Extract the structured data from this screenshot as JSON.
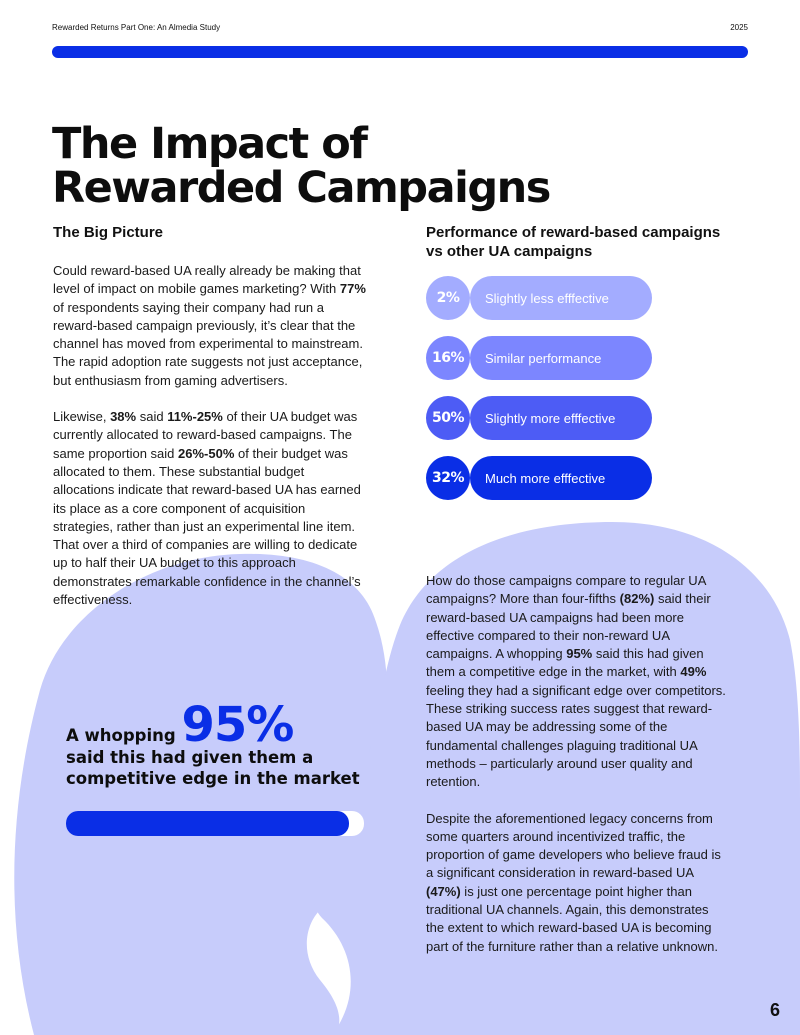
{
  "header": {
    "doc_title": "Rewarded Returns Part One: An Almedia Study",
    "year": "2025"
  },
  "title_line1": "The Impact of",
  "title_line2": "Rewarded Campaigns",
  "left": {
    "subheading": "The Big Picture",
    "para1": {
      "a": "Could reward-based UA really already be making that level of impact on mobile games marketing? With ",
      "b": "77%",
      "c": " of respondents saying their company had run a reward-based campaign previously, it’s clear that the channel has moved from experimental to mainstream. The rapid adoption rate suggests not just acceptance, but enthusiasm from gaming advertisers."
    },
    "para2": {
      "a": "Likewise, ",
      "b": "38%",
      "c": " said ",
      "d": "11%-25%",
      "e": " of their UA budget was currently allocated to reward-based campaigns. The same proportion said  ",
      "f": "26%-50%",
      "g": " of their budget was allocated to them. These substantial budget allocations indicate that reward-based UA has earned its place as a core component of acquisition strategies, rather than just an experimental line item. That over a third of companies are willing to dedicate up to half their UA budget to this approach demonstrates remarkable confidence in the channel’s effectiveness."
    }
  },
  "chart_data": {
    "type": "bar",
    "title": "Performance of reward-based campaigns vs other UA campaigns",
    "categories": [
      "Slightly less efffective",
      "Similar performance",
      "Slightly more efffective",
      "Much more efffective"
    ],
    "values": [
      2,
      16,
      50,
      32
    ],
    "value_labels": [
      "2%",
      "16%",
      "50%",
      "32%"
    ],
    "colors": [
      "#a3acff",
      "#7c86ff",
      "#4d5cf5",
      "#0a2ee6"
    ]
  },
  "callout": {
    "prefix": "A whopping",
    "big_value": "95%",
    "line2": "said this had given them a",
    "line3": "competitive edge in the market",
    "progress_fraction": 0.95
  },
  "right": {
    "para1": {
      "a": "How do those campaigns compare to regular UA campaigns? More than four-fifths ",
      "b": "(82%)",
      "c": " said their reward-based UA campaigns had been more effective compared  to their non-reward UA campaigns. A whopping ",
      "d": "95%",
      "e": " said this had given them a competitive edge in the market, with ",
      "f": "49%",
      "g": " feeling they had a significant edge over competitors. These striking success rates suggest that reward-based UA may be addressing some of the fundamental challenges plaguing traditional UA methods – particularly around user quality and retention."
    },
    "para2": {
      "a": "Despite the aforementioned legacy concerns from some quarters around incentivized traffic, the proportion of game developers who believe fraud is a significant consideration in reward-based UA ",
      "b": "(47%)",
      "c": " is just one percentage point higher than traditional UA channels. Again, this demonstrates the extent to which reward-based UA is becoming part of the furniture rather than a relative unknown."
    }
  },
  "page_number": "6",
  "colors": {
    "accent": "#0a2ee6",
    "blob": "#c7ccfb"
  }
}
